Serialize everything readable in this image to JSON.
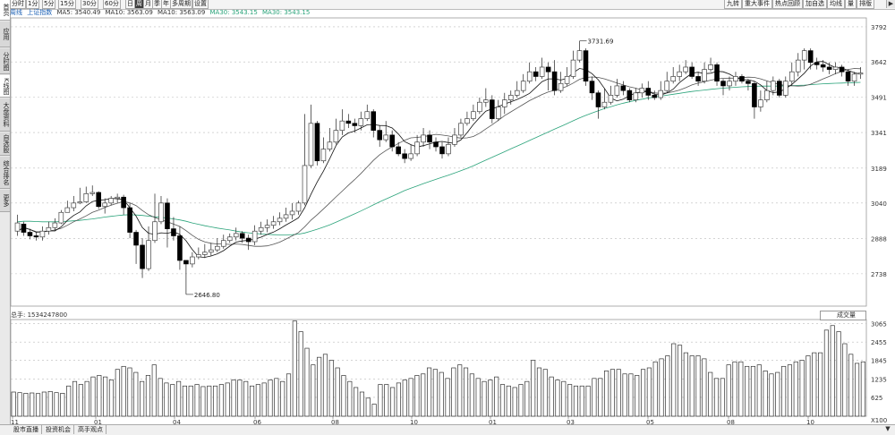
{
  "left_tabs": [
    {
      "label": "首页",
      "active": true
    },
    {
      "label": "应用",
      "active": false
    },
    {
      "label": "分时图",
      "active": false
    },
    {
      "label": "K线图",
      "active": true
    },
    {
      "label": "大盘资料",
      "active": false
    },
    {
      "label": "自选股",
      "active": false
    },
    {
      "label": "综合排名",
      "active": false
    },
    {
      "label": "更多",
      "active": false
    }
  ],
  "toolbar": {
    "periods": [
      "分时",
      "1分",
      "5分",
      "15分",
      "30分",
      "60分",
      "日",
      "周",
      "月",
      "季",
      "年",
      "多周期",
      "设置"
    ],
    "active_period": "周",
    "right_items": [
      "九转",
      "重大事件",
      "热点回顾",
      "加自选",
      "均线",
      "量",
      "排版"
    ],
    "close_icon": "▶"
  },
  "info": {
    "weekly": "周线",
    "index_name": "上证指数",
    "ma5": "MA5: 3540.49",
    "ma10": "MA10: 3563.09",
    "ma20": "MA10: 3563.09",
    "ma30": "MA30: 3543.15",
    "ma60": "MA30: 3543.15"
  },
  "colors": {
    "up": "#444444",
    "down": "#000000",
    "ma_long": "#2aa37a",
    "ma_mid": "#555555",
    "ma_short": "#111111"
  },
  "chart_data": {
    "type": "candlestick",
    "price_axis_ticks": [
      3792,
      3642,
      3491,
      3341,
      3189,
      3040,
      2888,
      2738
    ],
    "price_range": [
      2600,
      3830
    ],
    "max_label": "3731.69",
    "min_label": "2646.80",
    "x_tick_labels": [
      "11",
      "01",
      "04",
      "06",
      "08",
      "10",
      "01",
      "03",
      "05",
      "08",
      "10"
    ],
    "candles": [
      [
        2920,
        2955,
        2990,
        2900
      ],
      [
        2950,
        2915,
        2960,
        2900
      ],
      [
        2915,
        2900,
        2930,
        2885
      ],
      [
        2900,
        2895,
        2915,
        2880
      ],
      [
        2895,
        2920,
        2940,
        2880
      ],
      [
        2920,
        2935,
        2960,
        2905
      ],
      [
        2935,
        2955,
        2975,
        2920
      ],
      [
        2955,
        3000,
        3010,
        2950
      ],
      [
        3000,
        3020,
        3050,
        3000
      ],
      [
        3020,
        3040,
        3070,
        3005
      ],
      [
        3040,
        3045,
        3105,
        3035
      ],
      [
        3045,
        3080,
        3110,
        3040
      ],
      [
        3080,
        3085,
        3115,
        3070
      ],
      [
        3085,
        3025,
        3090,
        3015
      ],
      [
        3025,
        3040,
        3060,
        2995
      ],
      [
        3040,
        3060,
        3070,
        3030
      ],
      [
        3060,
        3065,
        3080,
        3040
      ],
      [
        3065,
        3020,
        3075,
        2990
      ],
      [
        3020,
        2915,
        3040,
        2890
      ],
      [
        2915,
        2860,
        2925,
        2780
      ],
      [
        2860,
        2760,
        2890,
        2720
      ],
      [
        2760,
        2880,
        2940,
        2750
      ],
      [
        2880,
        2960,
        3080,
        2870
      ],
      [
        2960,
        3040,
        3070,
        2950
      ],
      [
        3040,
        2930,
        3060,
        2850
      ],
      [
        2930,
        2900,
        2980,
        2880
      ],
      [
        2900,
        2795,
        2940,
        2755
      ],
      [
        2795,
        2780,
        2790,
        2650
      ],
      [
        2780,
        2810,
        2830,
        2765
      ],
      [
        2810,
        2820,
        2850,
        2800
      ],
      [
        2820,
        2830,
        2865,
        2805
      ],
      [
        2830,
        2840,
        2870,
        2815
      ],
      [
        2840,
        2855,
        2890,
        2830
      ],
      [
        2855,
        2880,
        2905,
        2845
      ],
      [
        2880,
        2895,
        2910,
        2870
      ],
      [
        2895,
        2910,
        2935,
        2880
      ],
      [
        2910,
        2890,
        2920,
        2870
      ],
      [
        2890,
        2875,
        2905,
        2840
      ],
      [
        2875,
        2920,
        2945,
        2860
      ],
      [
        2920,
        2935,
        2960,
        2905
      ],
      [
        2935,
        2945,
        2970,
        2915
      ],
      [
        2945,
        2960,
        2985,
        2930
      ],
      [
        2960,
        2975,
        3000,
        2945
      ],
      [
        2975,
        2990,
        3020,
        2960
      ],
      [
        2990,
        3005,
        3040,
        2970
      ],
      [
        3005,
        3040,
        3050,
        2990
      ],
      [
        3040,
        3200,
        3420,
        3030
      ],
      [
        3200,
        3380,
        3460,
        3190
      ],
      [
        3380,
        3220,
        3390,
        3200
      ],
      [
        3220,
        3270,
        3320,
        3210
      ],
      [
        3270,
        3300,
        3360,
        3260
      ],
      [
        3300,
        3350,
        3400,
        3290
      ],
      [
        3350,
        3390,
        3440,
        3330
      ],
      [
        3390,
        3380,
        3420,
        3360
      ],
      [
        3380,
        3370,
        3400,
        3340
      ],
      [
        3370,
        3400,
        3430,
        3350
      ],
      [
        3400,
        3430,
        3460,
        3390
      ],
      [
        3430,
        3350,
        3440,
        3320
      ],
      [
        3350,
        3310,
        3370,
        3280
      ],
      [
        3310,
        3330,
        3390,
        3300
      ],
      [
        3330,
        3280,
        3350,
        3260
      ],
      [
        3280,
        3250,
        3300,
        3240
      ],
      [
        3250,
        3230,
        3270,
        3210
      ],
      [
        3230,
        3250,
        3290,
        3220
      ],
      [
        3250,
        3300,
        3330,
        3240
      ],
      [
        3300,
        3330,
        3360,
        3280
      ],
      [
        3330,
        3300,
        3350,
        3270
      ],
      [
        3300,
        3280,
        3320,
        3260
      ],
      [
        3280,
        3250,
        3300,
        3230
      ],
      [
        3250,
        3290,
        3320,
        3240
      ],
      [
        3290,
        3330,
        3360,
        3280
      ],
      [
        3330,
        3380,
        3400,
        3320
      ],
      [
        3380,
        3400,
        3430,
        3370
      ],
      [
        3400,
        3430,
        3460,
        3390
      ],
      [
        3430,
        3470,
        3490,
        3420
      ],
      [
        3470,
        3480,
        3530,
        3450
      ],
      [
        3480,
        3400,
        3500,
        3380
      ],
      [
        3400,
        3450,
        3480,
        3390
      ],
      [
        3450,
        3480,
        3510,
        3420
      ],
      [
        3480,
        3500,
        3520,
        3460
      ],
      [
        3500,
        3520,
        3560,
        3490
      ],
      [
        3520,
        3560,
        3590,
        3510
      ],
      [
        3560,
        3600,
        3640,
        3550
      ],
      [
        3600,
        3580,
        3620,
        3560
      ],
      [
        3580,
        3620,
        3660,
        3570
      ],
      [
        3620,
        3600,
        3640,
        3520
      ],
      [
        3600,
        3520,
        3650,
        3500
      ],
      [
        3520,
        3550,
        3600,
        3510
      ],
      [
        3550,
        3580,
        3620,
        3540
      ],
      [
        3580,
        3650,
        3690,
        3570
      ],
      [
        3650,
        3690,
        3731.69,
        3640
      ],
      [
        3690,
        3560,
        3700,
        3540
      ],
      [
        3560,
        3510,
        3580,
        3480
      ],
      [
        3510,
        3450,
        3520,
        3400
      ],
      [
        3450,
        3470,
        3530,
        3440
      ],
      [
        3470,
        3500,
        3540,
        3460
      ],
      [
        3500,
        3540,
        3570,
        3490
      ],
      [
        3540,
        3520,
        3560,
        3500
      ],
      [
        3520,
        3480,
        3530,
        3470
      ],
      [
        3480,
        3510,
        3530,
        3470
      ],
      [
        3510,
        3530,
        3550,
        3490
      ],
      [
        3530,
        3500,
        3560,
        3480
      ],
      [
        3500,
        3490,
        3520,
        3480
      ],
      [
        3490,
        3520,
        3560,
        3480
      ],
      [
        3520,
        3560,
        3600,
        3510
      ],
      [
        3560,
        3580,
        3620,
        3550
      ],
      [
        3580,
        3600,
        3630,
        3560
      ],
      [
        3600,
        3620,
        3650,
        3590
      ],
      [
        3620,
        3580,
        3640,
        3570
      ],
      [
        3580,
        3560,
        3600,
        3540
      ],
      [
        3560,
        3610,
        3640,
        3550
      ],
      [
        3610,
        3630,
        3660,
        3600
      ],
      [
        3630,
        3560,
        3640,
        3540
      ],
      [
        3560,
        3540,
        3570,
        3500
      ],
      [
        3540,
        3560,
        3580,
        3520
      ],
      [
        3560,
        3580,
        3600,
        3540
      ],
      [
        3580,
        3560,
        3590,
        3550
      ],
      [
        3560,
        3550,
        3570,
        3520
      ],
      [
        3550,
        3450,
        3560,
        3400
      ],
      [
        3450,
        3480,
        3520,
        3430
      ],
      [
        3480,
        3520,
        3560,
        3470
      ],
      [
        3520,
        3560,
        3580,
        3500
      ],
      [
        3560,
        3500,
        3570,
        3490
      ],
      [
        3500,
        3560,
        3580,
        3490
      ],
      [
        3560,
        3600,
        3640,
        3540
      ],
      [
        3600,
        3650,
        3680,
        3580
      ],
      [
        3650,
        3690,
        3700,
        3610
      ],
      [
        3690,
        3640,
        3700,
        3610
      ],
      [
        3640,
        3630,
        3660,
        3610
      ],
      [
        3630,
        3620,
        3650,
        3600
      ],
      [
        3620,
        3610,
        3640,
        3590
      ],
      [
        3610,
        3620,
        3640,
        3590
      ],
      [
        3620,
        3600,
        3630,
        3580
      ],
      [
        3600,
        3560,
        3610,
        3540
      ],
      [
        3560,
        3590,
        3600,
        3540
      ],
      [
        3590,
        3595,
        3620,
        3570
      ]
    ],
    "volume": {
      "label": "总手: 1534247800",
      "dropdown": "成交量",
      "axis_ticks": [
        "3065",
        "2455",
        "1845",
        "1235",
        "625",
        "X100"
      ],
      "range": [
        0,
        3200
      ],
      "values": [
        800,
        780,
        760,
        770,
        750,
        800,
        820,
        780,
        760,
        1000,
        1150,
        1050,
        1150,
        1300,
        1350,
        1300,
        1200,
        1550,
        1650,
        1600,
        1450,
        1150,
        1350,
        1700,
        1250,
        1100,
        1050,
        1150,
        1000,
        1000,
        1050,
        980,
        1000,
        1000,
        1050,
        1100,
        1200,
        1200,
        1150,
        1000,
        1050,
        1100,
        1200,
        1250,
        1150,
        1400,
        3150,
        2800,
        2250,
        1700,
        1950,
        2050,
        1850,
        1600,
        1350,
        1150,
        950,
        800,
        600,
        400,
        1050,
        1050,
        950,
        1100,
        1200,
        1250,
        1350,
        1400,
        1600,
        1550,
        1450,
        1250,
        1600,
        1700,
        1600,
        1400,
        1250,
        1150,
        1200,
        1300,
        1050,
        1000,
        950,
        1050,
        1150,
        1850,
        1600,
        1550,
        1300,
        1200,
        1150,
        1050,
        1000,
        1000,
        1000,
        1250,
        1250,
        1500,
        1550,
        1550,
        1400,
        1400,
        1350,
        1550,
        1600,
        1800,
        1900,
        2000,
        2400,
        2350,
        2100,
        2000,
        2000,
        1900,
        1450,
        1250,
        1250,
        1700,
        1800,
        1800,
        1650,
        1650,
        1700,
        1500,
        1400,
        1450,
        1650,
        1700,
        1800,
        1850,
        2000,
        2100,
        2100,
        2850,
        3000,
        2800,
        2400,
        2050,
        1750,
        1800
      ]
    },
    "ma_short": [
      2920,
      2935,
      2927,
      2915,
      2917,
      2921,
      2921,
      2938,
      2966,
      2987,
      3002,
      3028,
      3046,
      3052,
      3054,
      3060,
      3058,
      3054,
      3020,
      2984,
      2935,
      2911,
      2906,
      2913,
      2911,
      2917,
      2906,
      2879,
      2841,
      2810,
      2808,
      2814,
      2823,
      2837,
      2856,
      2873,
      2878,
      2881,
      2886,
      2894,
      2906,
      2916,
      2930,
      2946,
      2961,
      2977,
      3020,
      3078,
      3130,
      3176,
      3229,
      3285,
      3322,
      3339,
      3347,
      3360,
      3374,
      3375,
      3371,
      3370,
      3360,
      3334,
      3302,
      3289,
      3279,
      3285,
      3292,
      3300,
      3303,
      3298,
      3295,
      3309,
      3340,
      3375,
      3405,
      3432,
      3442,
      3452,
      3462,
      3472,
      3482,
      3494,
      3508,
      3533,
      3558,
      3570,
      3570,
      3565,
      3572,
      3596,
      3614,
      3609,
      3592,
      3566,
      3529,
      3488,
      3476,
      3483,
      3498,
      3510,
      3514,
      3516,
      3504,
      3500,
      3510,
      3526,
      3554,
      3574,
      3594,
      3598,
      3592,
      3594,
      3602,
      3600,
      3590,
      3575,
      3567,
      3566,
      3560,
      3544,
      3520,
      3511,
      3514,
      3528,
      3546,
      3570,
      3594,
      3625,
      3643,
      3644,
      3630,
      3618,
      3616,
      3606,
      3596,
      3590
    ],
    "ma_mid": [
      2920,
      2935,
      2927,
      2918,
      2917,
      2920,
      2925,
      2932,
      2945,
      2960,
      2972,
      2985,
      3000,
      3010,
      3021,
      3031,
      3039,
      3047,
      3041,
      3029,
      3008,
      2990,
      2978,
      2968,
      2960,
      2950,
      2940,
      2922,
      2902,
      2885,
      2874,
      2868,
      2865,
      2865,
      2863,
      2865,
      2863,
      2859,
      2855,
      2855,
      2857,
      2864,
      2873,
      2886,
      2900,
      2914,
      2939,
      2967,
      2990,
      3015,
      3040,
      3066,
      3091,
      3116,
      3140,
      3166,
      3194,
      3222,
      3246,
      3264,
      3280,
      3294,
      3308,
      3318,
      3320,
      3323,
      3328,
      3333,
      3330,
      3326,
      3321,
      3317,
      3318,
      3324,
      3338,
      3356,
      3374,
      3393,
      3413,
      3429,
      3445,
      3461,
      3477,
      3490,
      3503,
      3514,
      3521,
      3528,
      3538,
      3552,
      3568,
      3576,
      3578,
      3576,
      3570,
      3561,
      3552,
      3544,
      3536,
      3530,
      3522,
      3516,
      3510,
      3508,
      3510,
      3515,
      3522,
      3532,
      3544,
      3552,
      3558,
      3564,
      3570,
      3572,
      3573,
      3573,
      3575,
      3577,
      3576,
      3570,
      3561,
      3553,
      3546,
      3541,
      3540,
      3539,
      3540,
      3547,
      3558,
      3570,
      3580,
      3592,
      3602,
      3610,
      3614,
      3613
    ],
    "ma_long": [
      2960,
      2962,
      2962,
      2961,
      2960,
      2960,
      2960,
      2961,
      2962,
      2964,
      2966,
      2969,
      2972,
      2976,
      2980,
      2983,
      2986,
      2989,
      2990,
      2989,
      2987,
      2984,
      2981,
      2979,
      2976,
      2972,
      2968,
      2962,
      2955,
      2949,
      2943,
      2938,
      2933,
      2929,
      2925,
      2920,
      2916,
      2913,
      2910,
      2908,
      2906,
      2905,
      2904,
      2904,
      2905,
      2907,
      2912,
      2920,
      2928,
      2937,
      2947,
      2958,
      2970,
      2982,
      2994,
      3006,
      3019,
      3032,
      3045,
      3057,
      3069,
      3081,
      3093,
      3103,
      3113,
      3123,
      3132,
      3141,
      3150,
      3159,
      3168,
      3178,
      3188,
      3199,
      3211,
      3223,
      3235,
      3247,
      3259,
      3271,
      3283,
      3295,
      3307,
      3319,
      3331,
      3343,
      3355,
      3367,
      3379,
      3391,
      3403,
      3414,
      3424,
      3434,
      3443,
      3451,
      3459,
      3466,
      3472,
      3478,
      3483,
      3488,
      3492,
      3496,
      3500,
      3504,
      3508,
      3512,
      3516,
      3519,
      3522,
      3525,
      3528,
      3530,
      3532,
      3534,
      3536,
      3537,
      3538,
      3539,
      3539,
      3539,
      3539,
      3540,
      3541,
      3542,
      3543,
      3545,
      3547,
      3549,
      3550,
      3551,
      3552,
      3553,
      3554,
      3555
    ]
  },
  "bottom_tabs": [
    "股市直播",
    "投资机会",
    "高手观点"
  ],
  "scroll_icon": "▼"
}
